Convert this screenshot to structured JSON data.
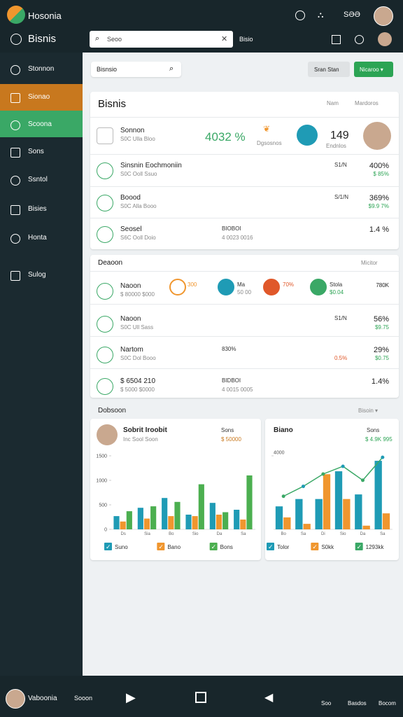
{
  "topbar": {
    "brand": "Hosonia",
    "title": "Bisnis",
    "search": "Seoo",
    "search_action": "Bisio",
    "status": "SƏƏ"
  },
  "sidebar": [
    "Stonnon",
    "Sionao",
    "Scoona",
    "Sons",
    "Ssntol",
    "Bisies",
    "Honta",
    "Sulog"
  ],
  "toolbar": {
    "search": "Bisnsio",
    "secondary": "Sran Stan",
    "primary": "Nicaroo ▾"
  },
  "panel1": {
    "title": "Bisnis",
    "filter": "Nam",
    "sort": "Mardoros",
    "rows": [
      {
        "name": "Sonnon",
        "sub": "S0C Ulla Bloo",
        "value": "4032 %",
        "tag": "Dgsosnos",
        "count": "149",
        "count_sub": "Endnlos"
      },
      {
        "name": "Sinsnin Eochmoniin",
        "sub": "S0C Ooll Ssuo",
        "code": "S1/N",
        "value": "400%",
        "change": "$ 85%"
      },
      {
        "name": "Boood",
        "sub": "S0C Alla Booo",
        "code": "S/1/N",
        "value": "369%",
        "change": "$9.9 7%"
      },
      {
        "name": "Seosel",
        "sub": "S6C Ooll Doio",
        "code": "BIOBOI",
        "code_sub": "4 0023 0016",
        "value": "1.4 %"
      }
    ]
  },
  "panel2": {
    "title": "Deaoon",
    "action": "Micitor",
    "rows": [
      {
        "name": "Naoon",
        "sub": "$ 80000 $000",
        "badge1": "300",
        "badge2": "Ma",
        "badge2_sub": "50 00",
        "badge3": "70%",
        "badge4": "Stola",
        "badge4_sub": "$0.04",
        "value": "780K"
      },
      {
        "name": "Naoon",
        "sub": "S0C Ull Sass",
        "code": "S1/N",
        "value": "56%",
        "change": "$9.75"
      },
      {
        "name": "Nartom",
        "sub": "S0C Dol Booo",
        "code": "830%",
        "code_sub": "0.5%",
        "value": "29%",
        "change": "$0.75"
      },
      {
        "name": "$ 6504 210",
        "sub": "$ 5000 $0000",
        "code": "BIDBOI",
        "code_sub": "4 0015 0005",
        "value": "1.4%"
      }
    ]
  },
  "section": {
    "title": "Dobsoon",
    "action": "Bisoin ▾"
  },
  "charts": [
    {
      "type": "bar",
      "title": "Sobrit Iroobit",
      "subtitle": "Inc Sool Soon",
      "stat_label": "Sons",
      "stat": "$ 50000",
      "categories": [
        "Ds",
        "Sia",
        "Bo",
        "Sio",
        "Da",
        "Sa"
      ],
      "ylim": [
        0,
        1500
      ],
      "yticks": [
        0,
        500,
        1000,
        1500
      ],
      "series": [
        {
          "name": "Suno",
          "color": "#1f9bb5",
          "kind": "bar",
          "values": [
            270,
            440,
            640,
            300,
            540,
            400
          ]
        },
        {
          "name": "Bano",
          "color": "#f0962e",
          "kind": "bar",
          "values": [
            160,
            220,
            270,
            270,
            300,
            200
          ]
        },
        {
          "name": "Bons",
          "color": "#4caf50",
          "kind": "bar",
          "values": [
            370,
            470,
            560,
            920,
            350,
            1100
          ]
        }
      ]
    },
    {
      "type": "combo",
      "title": "Biano",
      "stat_label": "Sons",
      "stat": "$ 4.9K 995",
      "categories": [
        "Bo",
        "Sa",
        "Di",
        "Sio",
        "Da",
        "Sa"
      ],
      "ylim": [
        0,
        4000
      ],
      "yticks": [
        4000
      ],
      "series": [
        {
          "name": "Tolor",
          "color": "#1f9bb5",
          "kind": "bar",
          "values": [
            1250,
            1650,
            1650,
            3160,
            1900,
            3730
          ]
        },
        {
          "name": "S0kk",
          "color": "#f0962e",
          "kind": "bar",
          "values": [
            650,
            300,
            3000,
            1650,
            200,
            870
          ]
        },
        {
          "name": "1293kk",
          "color": "#3aa866",
          "kind": "line",
          "values": [
            1800,
            2340,
            3010,
            3430,
            2670,
            3920
          ]
        }
      ]
    }
  ],
  "bottombar": {
    "user": "Vaboonia",
    "action": "Sooon",
    "items": [
      "Soo",
      "Basdos",
      "Bocom"
    ]
  }
}
